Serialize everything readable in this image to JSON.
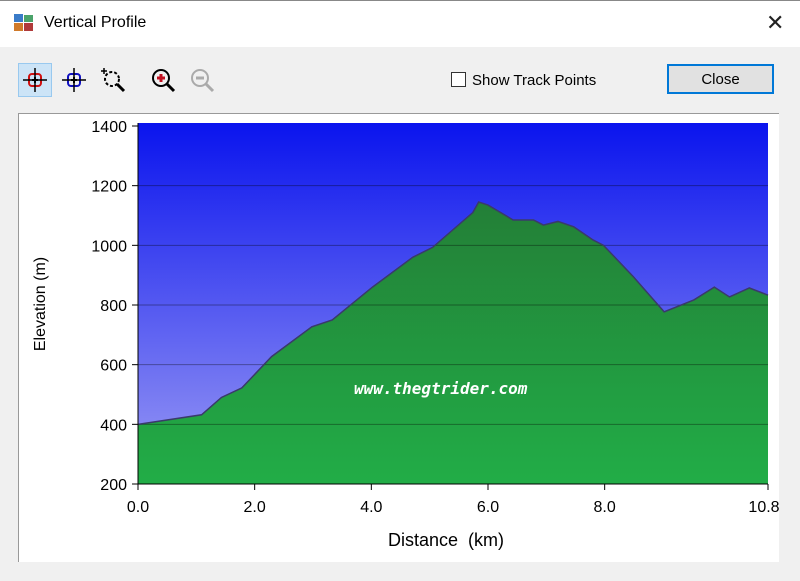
{
  "window": {
    "title": "Vertical Profile",
    "close_symbol": "✕"
  },
  "toolbar": {
    "show_track_points_label": "Show Track Points",
    "show_track_points_checked": false,
    "close_label": "Close",
    "tools": [
      "crosshair-red-icon",
      "crosshair-blue-icon",
      "zoom-region-icon",
      "zoom-in-icon",
      "zoom-out-icon"
    ]
  },
  "watermark": "www.thegtrider.com",
  "chart_data": {
    "type": "area",
    "xlabel": "Distance  (km)",
    "ylabel": "Elevation (m)",
    "xlim": [
      0,
      10.8
    ],
    "ylim": [
      200,
      1400
    ],
    "xticks": [
      "0.0",
      "2.0",
      "4.0",
      "6.0",
      "8.0",
      "10.8"
    ],
    "xtick_values": [
      0,
      2,
      4,
      6,
      8,
      10.8
    ],
    "yticks": [
      "200",
      "400",
      "600",
      "800",
      "1000",
      "1200",
      "1400"
    ],
    "ytick_values": [
      200,
      400,
      600,
      800,
      1000,
      1200,
      1400
    ],
    "grid": true,
    "colors": {
      "sky_top": "#0a14ee",
      "sky_bottom": "#9c9cf4",
      "fill_top": "#237f37",
      "fill_bottom": "#22ad47",
      "line": "#3a3a6a"
    },
    "x": [
      0,
      1.09,
      1.43,
      1.78,
      2.29,
      2.98,
      3.33,
      4.02,
      4.71,
      5.05,
      5.74,
      5.84,
      6.0,
      6.43,
      6.78,
      6.95,
      7.2,
      7.47,
      7.8,
      7.98,
      8.5,
      9.02,
      9.53,
      9.88,
      10.14,
      10.48,
      10.8
    ],
    "y": [
      400,
      432,
      490,
      522,
      627,
      727,
      750,
      860,
      960,
      993,
      1110,
      1145,
      1135,
      1085,
      1085,
      1068,
      1080,
      1062,
      1018,
      1000,
      893,
      777,
      817,
      860,
      827,
      857,
      833
    ]
  }
}
